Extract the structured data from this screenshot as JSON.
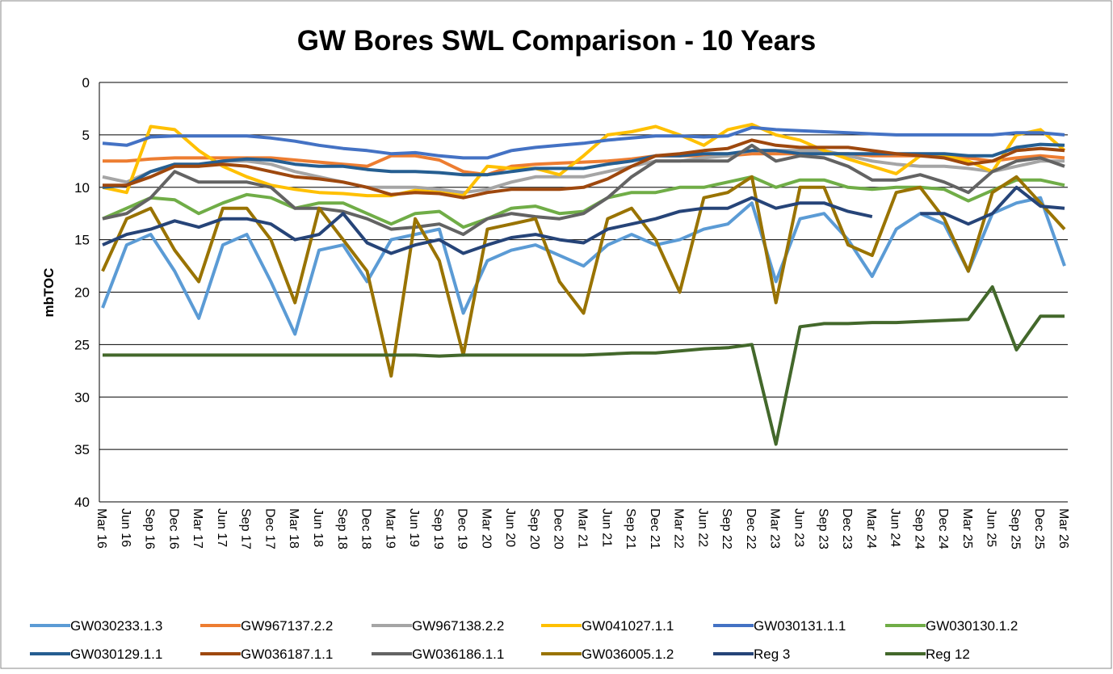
{
  "chart_data": {
    "type": "line",
    "title": "GW Bores SWL Comparison - 10 Years",
    "y_label": "mbTOC",
    "ylim": [
      0,
      40
    ],
    "yticks": [
      0,
      5,
      10,
      15,
      20,
      25,
      30,
      35,
      40
    ],
    "y_reversed": true,
    "grid": true,
    "legend": "bottom",
    "categories": [
      "Mar 16",
      "Jun 16",
      "Sep 16",
      "Dec 16",
      "Mar 17",
      "Jun 17",
      "Sep 17",
      "Dec 17",
      "Mar 18",
      "Jun 18",
      "Sep 18",
      "Dec 18",
      "Mar 19",
      "Jun 19",
      "Sep 19",
      "Dec 19",
      "Mar 20",
      "Jun 20",
      "Sep 20",
      "Dec 20",
      "Mar 21",
      "Jun 21",
      "Sep 21",
      "Dec 21",
      "Mar 22",
      "Jun 22",
      "Sep 22",
      "Dec 22",
      "Mar 23",
      "Jun 23",
      "Sep 23",
      "Dec 23",
      "Mar 24",
      "Jun 24",
      "Sep 24",
      "Dec 24",
      "Mar 25",
      "Jun 25",
      "Sep 25",
      "Dec 25",
      "Mar 26"
    ],
    "series": [
      {
        "name": "GW030233.1.3",
        "color": "#5b9bd5",
        "values": [
          21.5,
          15.5,
          14.5,
          18,
          22.5,
          15.5,
          14.5,
          19,
          24,
          16,
          15.5,
          19,
          15,
          14.5,
          14,
          22,
          17,
          16,
          15.5,
          16.5,
          17.5,
          15.5,
          14.5,
          15.5,
          15,
          14,
          13.5,
          11.5,
          19,
          13,
          12.5,
          15,
          18.5,
          14,
          12.5,
          13.5,
          18,
          12.5,
          11.5,
          11,
          17.5
        ]
      },
      {
        "name": "GW967137.2.2",
        "color": "#ed7d31",
        "values": [
          7.5,
          7.5,
          7.3,
          7.2,
          7.2,
          7.2,
          7.2,
          7.2,
          7.4,
          7.6,
          7.8,
          8,
          7,
          7,
          7.4,
          8.5,
          8.8,
          8,
          7.8,
          7.7,
          7.6,
          7.5,
          7.3,
          7,
          7,
          7,
          7,
          6.8,
          6.8,
          6.8,
          6.8,
          6.8,
          7,
          7,
          7,
          7,
          7.2,
          7.5,
          7.2,
          7,
          7.2
        ]
      },
      {
        "name": "GW967138.2.2",
        "color": "#a5a5a5",
        "values": [
          9,
          9.5,
          8.5,
          8,
          8,
          7.5,
          7.5,
          7.8,
          8.5,
          9,
          9.5,
          10,
          10,
          10,
          10.2,
          10.5,
          10.2,
          9.5,
          9,
          9,
          9,
          8.5,
          8,
          7.5,
          7.5,
          7.2,
          7,
          6.5,
          6.5,
          6.5,
          6.5,
          7,
          7.5,
          7.8,
          8,
          8,
          8.2,
          8.5,
          8,
          7.5,
          7.5
        ]
      },
      {
        "name": "GW041027.1.1",
        "color": "#ffc000",
        "values": [
          10,
          10.5,
          4.2,
          4.5,
          6.5,
          8,
          9,
          9.8,
          10.2,
          10.5,
          10.6,
          10.8,
          10.8,
          10.3,
          10.5,
          10.8,
          8,
          8.2,
          8.2,
          8.8,
          7,
          5,
          4.7,
          4.2,
          5,
          6,
          4.5,
          4,
          5,
          5.5,
          6.5,
          7.3,
          8,
          8.7,
          7,
          7,
          7.5,
          8.5,
          5,
          4.5,
          6.5
        ]
      },
      {
        "name": "GW030131.1.1",
        "color": "#4472c4",
        "values": [
          5.8,
          6,
          5.2,
          5.1,
          5.1,
          5.1,
          5.1,
          5.3,
          5.6,
          6,
          6.3,
          6.5,
          6.8,
          6.7,
          7,
          7.2,
          7.2,
          6.5,
          6.2,
          6,
          5.8,
          5.5,
          5.3,
          5.1,
          5.1,
          5.2,
          5.1,
          4.3,
          4.5,
          4.6,
          4.7,
          4.8,
          4.9,
          5,
          5,
          5,
          5,
          5,
          4.8,
          4.8,
          5
        ]
      },
      {
        "name": "GW030130.1.2",
        "color": "#70ad47",
        "values": [
          13,
          12,
          11,
          11.2,
          12.5,
          11.5,
          10.7,
          11,
          12,
          11.5,
          11.5,
          12.5,
          13.5,
          12.5,
          12.3,
          13.8,
          13,
          12,
          11.8,
          12.5,
          12.3,
          11,
          10.5,
          10.5,
          10,
          10,
          9.5,
          9,
          10,
          9.3,
          9.3,
          10,
          10.2,
          10,
          10,
          10.2,
          11.3,
          10.3,
          9.3,
          9.3,
          9.8
        ]
      },
      {
        "name": "GW030129.1.1",
        "color": "#255e91",
        "values": [
          10,
          9.8,
          8.5,
          7.8,
          7.8,
          7.5,
          7.3,
          7.4,
          7.8,
          8,
          8,
          8.3,
          8.5,
          8.5,
          8.6,
          8.8,
          8.8,
          8.5,
          8.2,
          8.2,
          8.2,
          7.8,
          7.5,
          7,
          7,
          6.8,
          6.8,
          6.5,
          6.5,
          6.8,
          6.8,
          6.8,
          6.8,
          6.8,
          6.8,
          6.8,
          7,
          7,
          6.2,
          5.9,
          6
        ]
      },
      {
        "name": "GW036187.1.1",
        "color": "#9e480e",
        "values": [
          9.8,
          9.8,
          9,
          8,
          8,
          7.8,
          8,
          8.5,
          9,
          9.2,
          9.5,
          10,
          10.7,
          10.5,
          10.6,
          11,
          10.5,
          10.2,
          10.2,
          10.2,
          10,
          9.2,
          8,
          7,
          6.8,
          6.5,
          6.3,
          5.5,
          6,
          6.2,
          6.2,
          6.2,
          6.5,
          6.8,
          7,
          7.2,
          7.8,
          7.5,
          6.5,
          6.3,
          6.5
        ]
      },
      {
        "name": "GW036186.1.1",
        "color": "#636363",
        "values": [
          13,
          12.5,
          11,
          8.5,
          9.5,
          9.5,
          9.5,
          10,
          12,
          12,
          12.3,
          13,
          14,
          13.8,
          13.5,
          14.5,
          13,
          12.5,
          12.8,
          13,
          12.5,
          11,
          9,
          7.5,
          7.5,
          7.5,
          7.5,
          6,
          7.5,
          7,
          7.2,
          8,
          9.3,
          9.3,
          8.8,
          9.5,
          10.5,
          8.5,
          7.5,
          7.2,
          8
        ]
      },
      {
        "name": "GW036005.1.2",
        "color": "#997300",
        "values": [
          18,
          13,
          12,
          16,
          19,
          12,
          12,
          15,
          21,
          12,
          15,
          18,
          28,
          13,
          17,
          26,
          14,
          13.5,
          13,
          19,
          22,
          13,
          12,
          15,
          20,
          11,
          10.5,
          9,
          21,
          10,
          10,
          15.5,
          16.5,
          10.5,
          10,
          13,
          18,
          10.5,
          9,
          11.5,
          14
        ]
      },
      {
        "name": "Reg 3",
        "color": "#264478",
        "values": [
          15.5,
          14.5,
          14,
          13.2,
          13.8,
          13,
          13,
          13.5,
          15,
          14.5,
          12.5,
          15.3,
          16.3,
          15.5,
          15,
          16.3,
          15.5,
          14.8,
          14.5,
          15,
          15.3,
          14,
          13.5,
          13,
          12.3,
          12,
          12,
          11,
          12,
          11.5,
          11.5,
          12.3,
          12.8,
          null,
          12.5,
          12.5,
          13.5,
          12.5,
          10,
          11.8,
          12
        ]
      },
      {
        "name": "Reg 12",
        "color": "#43682b",
        "values": [
          26,
          26,
          26,
          26,
          26,
          26,
          26,
          26,
          26,
          26,
          26,
          26,
          26,
          26,
          26.1,
          26,
          26,
          26,
          26,
          26,
          26,
          25.9,
          25.8,
          25.8,
          25.6,
          25.4,
          25.3,
          25,
          34.5,
          23.3,
          23,
          23,
          22.9,
          22.9,
          22.8,
          22.7,
          22.6,
          19.5,
          25.5,
          22.3,
          22.3
        ]
      }
    ]
  }
}
